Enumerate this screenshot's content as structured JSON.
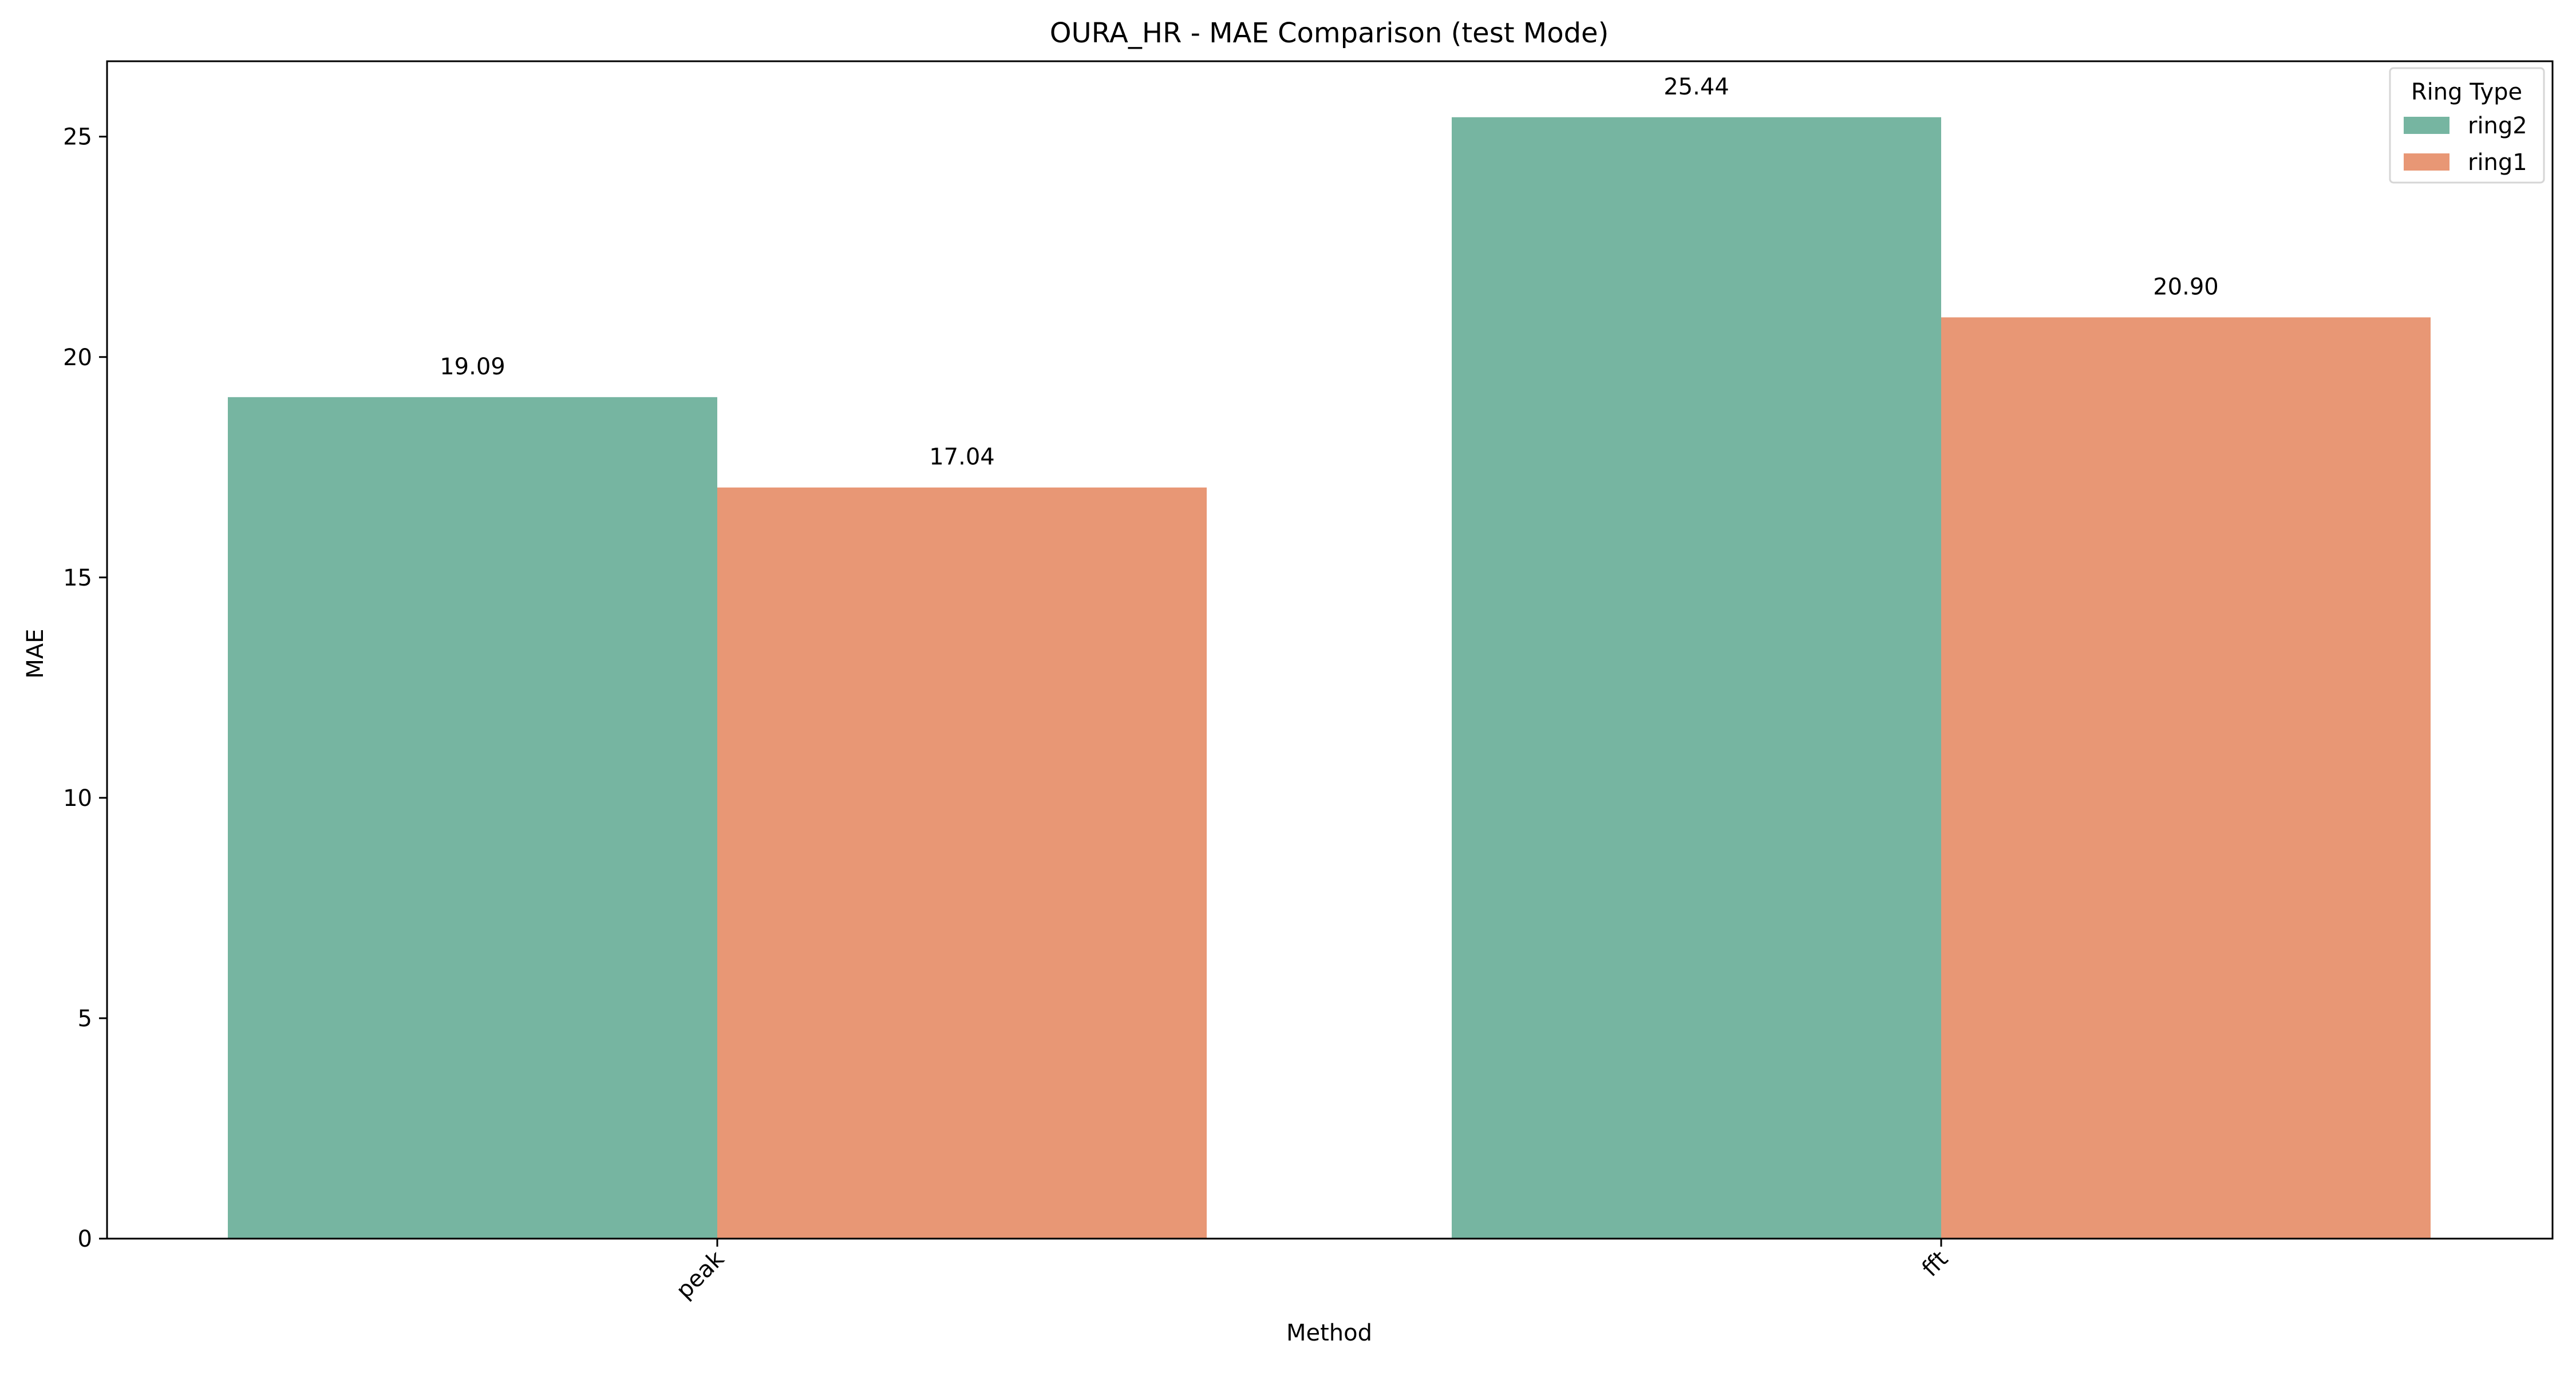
{
  "chart_data": {
    "type": "bar",
    "title": "OURA_HR - MAE Comparison (test Mode)",
    "xlabel": "Method",
    "ylabel": "MAE",
    "categories": [
      "peak",
      "fft"
    ],
    "series": [
      {
        "name": "ring2",
        "color": "#76b5a1",
        "values": [
          19.09,
          25.44
        ]
      },
      {
        "name": "ring1",
        "color": "#e89775",
        "values": [
          17.04,
          20.9
        ]
      }
    ],
    "value_labels": [
      [
        "19.09",
        "25.44"
      ],
      [
        "17.04",
        "20.90"
      ]
    ],
    "ylim": [
      0,
      26.71
    ],
    "yticks": [
      0,
      5,
      10,
      15,
      20,
      25
    ],
    "grid": false,
    "legend": {
      "title": "Ring Type",
      "placement": "top-right"
    }
  }
}
